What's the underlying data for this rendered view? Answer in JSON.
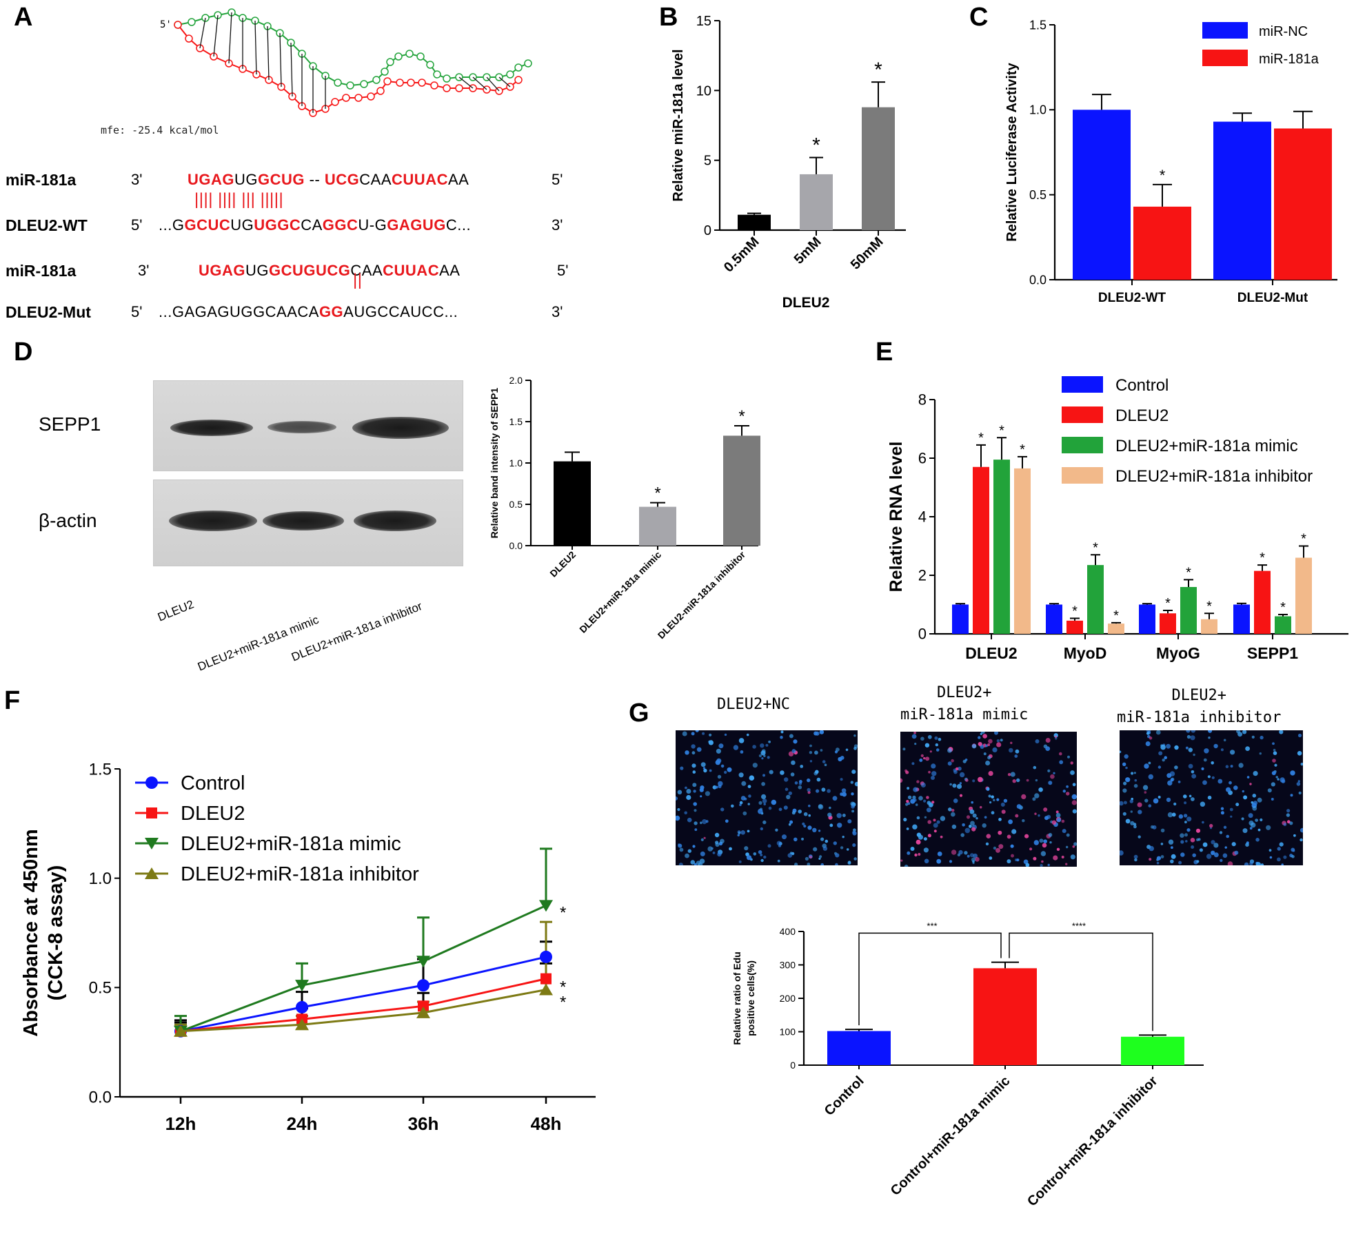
{
  "panels": {
    "A": {
      "letter": "A",
      "structure": {
        "five_prime": "5'",
        "mfe": "mfe: -25.4 kcal/mol"
      },
      "rows": [
        {
          "name": "miR-181a",
          "left": "3'",
          "right": "5'",
          "segments": [
            [
              "r",
              "UGAG"
            ],
            [
              "n",
              "UG"
            ],
            [
              "r",
              "GCUG"
            ],
            [
              "n",
              " -- "
            ],
            [
              "r",
              "UCG"
            ],
            [
              "n",
              "CAA"
            ],
            [
              "r",
              "CUUAC"
            ],
            [
              "n",
              "AA"
            ]
          ]
        },
        {
          "name": "DLEU2-WT",
          "left": "5'",
          "right": "3'",
          "segments": [
            [
              "n",
              "...G"
            ],
            [
              "r",
              "GCUC"
            ],
            [
              "n",
              "UG"
            ],
            [
              "r",
              "UGGC"
            ],
            [
              "n",
              "CA"
            ],
            [
              "r",
              "GGC"
            ],
            [
              "n",
              "U-G"
            ],
            [
              "r",
              "GAGUG"
            ],
            [
              "n",
              "C..."
            ]
          ]
        },
        {
          "name": "miR-181a",
          "left": "3'",
          "right": "5'",
          "segments": [
            [
              "r",
              "UGAG"
            ],
            [
              "n",
              "UG"
            ],
            [
              "r",
              "GCUGUCG"
            ],
            [
              "n",
              "CAA"
            ],
            [
              "r",
              "CUUAC"
            ],
            [
              "n",
              "AA"
            ]
          ]
        },
        {
          "name": "DLEU2-Mut",
          "left": "5'",
          "right": "3'",
          "segments": [
            [
              "n",
              "...GAGAGUGGCAACA"
            ],
            [
              "r",
              "GG"
            ],
            [
              "n",
              "AUGCCAUCC..."
            ]
          ]
        }
      ],
      "pairs_wt": "|||| |||| ||| |||||",
      "pairs_mut": "||"
    },
    "B": {
      "letter": "B"
    },
    "C": {
      "letter": "C"
    },
    "D": {
      "letter": "D",
      "blot_rows": [
        "SEPP1",
        "β-actin"
      ],
      "lanes": [
        "DLEU2",
        "DLEU2+miR-181a mimic",
        "DLEU2+miR-181a inhibitor"
      ]
    },
    "E": {
      "letter": "E"
    },
    "F": {
      "letter": "F"
    },
    "G": {
      "letter": "G",
      "images": [
        "DLEU2+NC",
        "DLEU2+\nmiR-181a mimic",
        "DLEU2+\nmiR-181a inhibitor"
      ]
    }
  },
  "colors": {
    "blue": "#0a14ff",
    "red": "#f71414",
    "green": "#22a33a",
    "green_light": "#1eff1e",
    "tan": "#f2b98a",
    "olive": "#7d7a14",
    "black": "#000000",
    "gray1": "#a6a6ab",
    "gray2": "#7b7b7b",
    "sig_red": "#e8171c"
  },
  "chart_data": [
    {
      "id": "B",
      "type": "bar",
      "categories": [
        "0.5mM",
        "5mM",
        "50mM"
      ],
      "values": [
        1.1,
        4.0,
        8.8
      ],
      "errors": [
        0.1,
        1.2,
        1.8
      ],
      "sig": [
        "",
        "*",
        "*"
      ],
      "xlabel": "DLEU2",
      "ylabel": "Relative miR-181a level",
      "ylim": [
        0,
        15
      ],
      "yticks": [
        0,
        5,
        10,
        15
      ],
      "colors": [
        "#000000",
        "#a6a6ab",
        "#7b7b7b"
      ]
    },
    {
      "id": "C",
      "type": "bar",
      "categories": [
        "DLEU2-WT",
        "DLEU2-Mut"
      ],
      "series": [
        {
          "name": "miR-NC",
          "values": [
            1.0,
            0.93
          ],
          "errors": [
            0.09,
            0.05
          ],
          "sig": [
            "",
            ""
          ],
          "color": "#0a14ff"
        },
        {
          "name": "miR-181a",
          "values": [
            0.43,
            0.89
          ],
          "errors": [
            0.13,
            0.1
          ],
          "sig": [
            "*",
            ""
          ],
          "color": "#f71414"
        }
      ],
      "ylabel": "Relative Luciferase Activity",
      "ylim": [
        0,
        1.5
      ],
      "yticks": [
        "0.0",
        "0.5",
        "1.0",
        "1.5"
      ],
      "legend": "top-right"
    },
    {
      "id": "D",
      "type": "bar",
      "categories": [
        "DLEU2",
        "DLEU2+miR-181a mimic",
        "DLEU2-miR-181a inhibitor"
      ],
      "values": [
        1.02,
        0.47,
        1.33
      ],
      "errors": [
        0.11,
        0.05,
        0.12
      ],
      "sig": [
        "",
        "*",
        "*"
      ],
      "ylabel": "Relative  band intensity of SEPP1",
      "ylim": [
        0,
        2.0
      ],
      "yticks": [
        "0.0",
        "0.5",
        "1.0",
        "1.5",
        "2.0"
      ],
      "colors": [
        "#000000",
        "#a6a6ab",
        "#7b7b7b"
      ]
    },
    {
      "id": "E",
      "type": "bar",
      "categories": [
        "DLEU2",
        "MyoD",
        "MyoG",
        "SEPP1"
      ],
      "series": [
        {
          "name": "Control",
          "values": [
            1.0,
            1.0,
            1.0,
            1.0
          ],
          "errors": [
            0.03,
            0.03,
            0.03,
            0.04
          ],
          "sig": [
            "",
            "",
            "",
            ""
          ],
          "color": "#0a14ff"
        },
        {
          "name": "DLEU2",
          "values": [
            5.7,
            0.45,
            0.7,
            2.15
          ],
          "errors": [
            0.75,
            0.08,
            0.1,
            0.2
          ],
          "sig": [
            "*",
            "*",
            "*",
            "*"
          ],
          "color": "#f71414"
        },
        {
          "name": "DLEU2+miR-181a mimic",
          "values": [
            5.95,
            2.35,
            1.6,
            0.6
          ],
          "errors": [
            0.75,
            0.35,
            0.25,
            0.06
          ],
          "sig": [
            "*",
            "*",
            "*",
            "*"
          ],
          "color": "#22a33a"
        },
        {
          "name": "DLEU2+miR-181a inhibitor",
          "values": [
            5.65,
            0.35,
            0.5,
            2.6
          ],
          "errors": [
            0.4,
            0.03,
            0.2,
            0.4
          ],
          "sig": [
            "*",
            "*",
            "*",
            "*"
          ],
          "color": "#f2b98a"
        }
      ],
      "ylabel": "Relative  RNA level",
      "ylim": [
        0,
        8
      ],
      "yticks": [
        0,
        2,
        4,
        6,
        8
      ],
      "legend": "top-right"
    },
    {
      "id": "F",
      "type": "line",
      "x": [
        "12h",
        "24h",
        "36h",
        "48h"
      ],
      "series": [
        {
          "name": "Control",
          "values": [
            0.3,
            0.41,
            0.51,
            0.64
          ],
          "errors": [
            0.05,
            0.07,
            0.12,
            0.07
          ],
          "marker": "circle",
          "color": "#0a14ff",
          "sig": "*"
        },
        {
          "name": "DLEU2",
          "values": [
            0.3,
            0.355,
            0.415,
            0.54
          ],
          "errors": [
            0.04,
            0.05,
            0.06,
            0.07
          ],
          "marker": "square",
          "color": "#f71414",
          "sig": "*"
        },
        {
          "name": "DLEU2+miR-181a mimic",
          "values": [
            0.3,
            0.51,
            0.62,
            0.875
          ],
          "errors": [
            0.07,
            0.1,
            0.2,
            0.26
          ],
          "marker": "triangle-down",
          "color": "#1f7a1f",
          "sig": "*"
        },
        {
          "name": "DLEU2+miR-181a inhibitor",
          "values": [
            0.3,
            0.33,
            0.385,
            0.49
          ],
          "errors": [
            0.03,
            0.04,
            0.05,
            0.31
          ],
          "marker": "triangle-up",
          "color": "#7d7a14",
          "sig": ""
        }
      ],
      "ylabel": "Absorbance at 450nm",
      "ylabel2": "(CCK-8 assay)",
      "ylim": [
        0,
        1.5
      ],
      "yticks": [
        "0.0",
        "0.5",
        "1.0",
        "1.5"
      ],
      "legend": "top-left"
    },
    {
      "id": "G",
      "type": "bar",
      "categories": [
        "Control",
        "Control+miR-181a mimic",
        "Control+miR-181a inhibitor"
      ],
      "values": [
        102,
        290,
        85
      ],
      "errors": [
        5,
        18,
        5
      ],
      "colors": [
        "#0a14ff",
        "#f71414",
        "#1eff1e"
      ],
      "ylabel": "Relative ratio of Edu",
      "ylabel2": "positive cells(%)",
      "ylim": [
        0,
        400
      ],
      "yticks": [
        0,
        100,
        200,
        300,
        400
      ],
      "brackets": [
        "***",
        "****"
      ]
    }
  ]
}
